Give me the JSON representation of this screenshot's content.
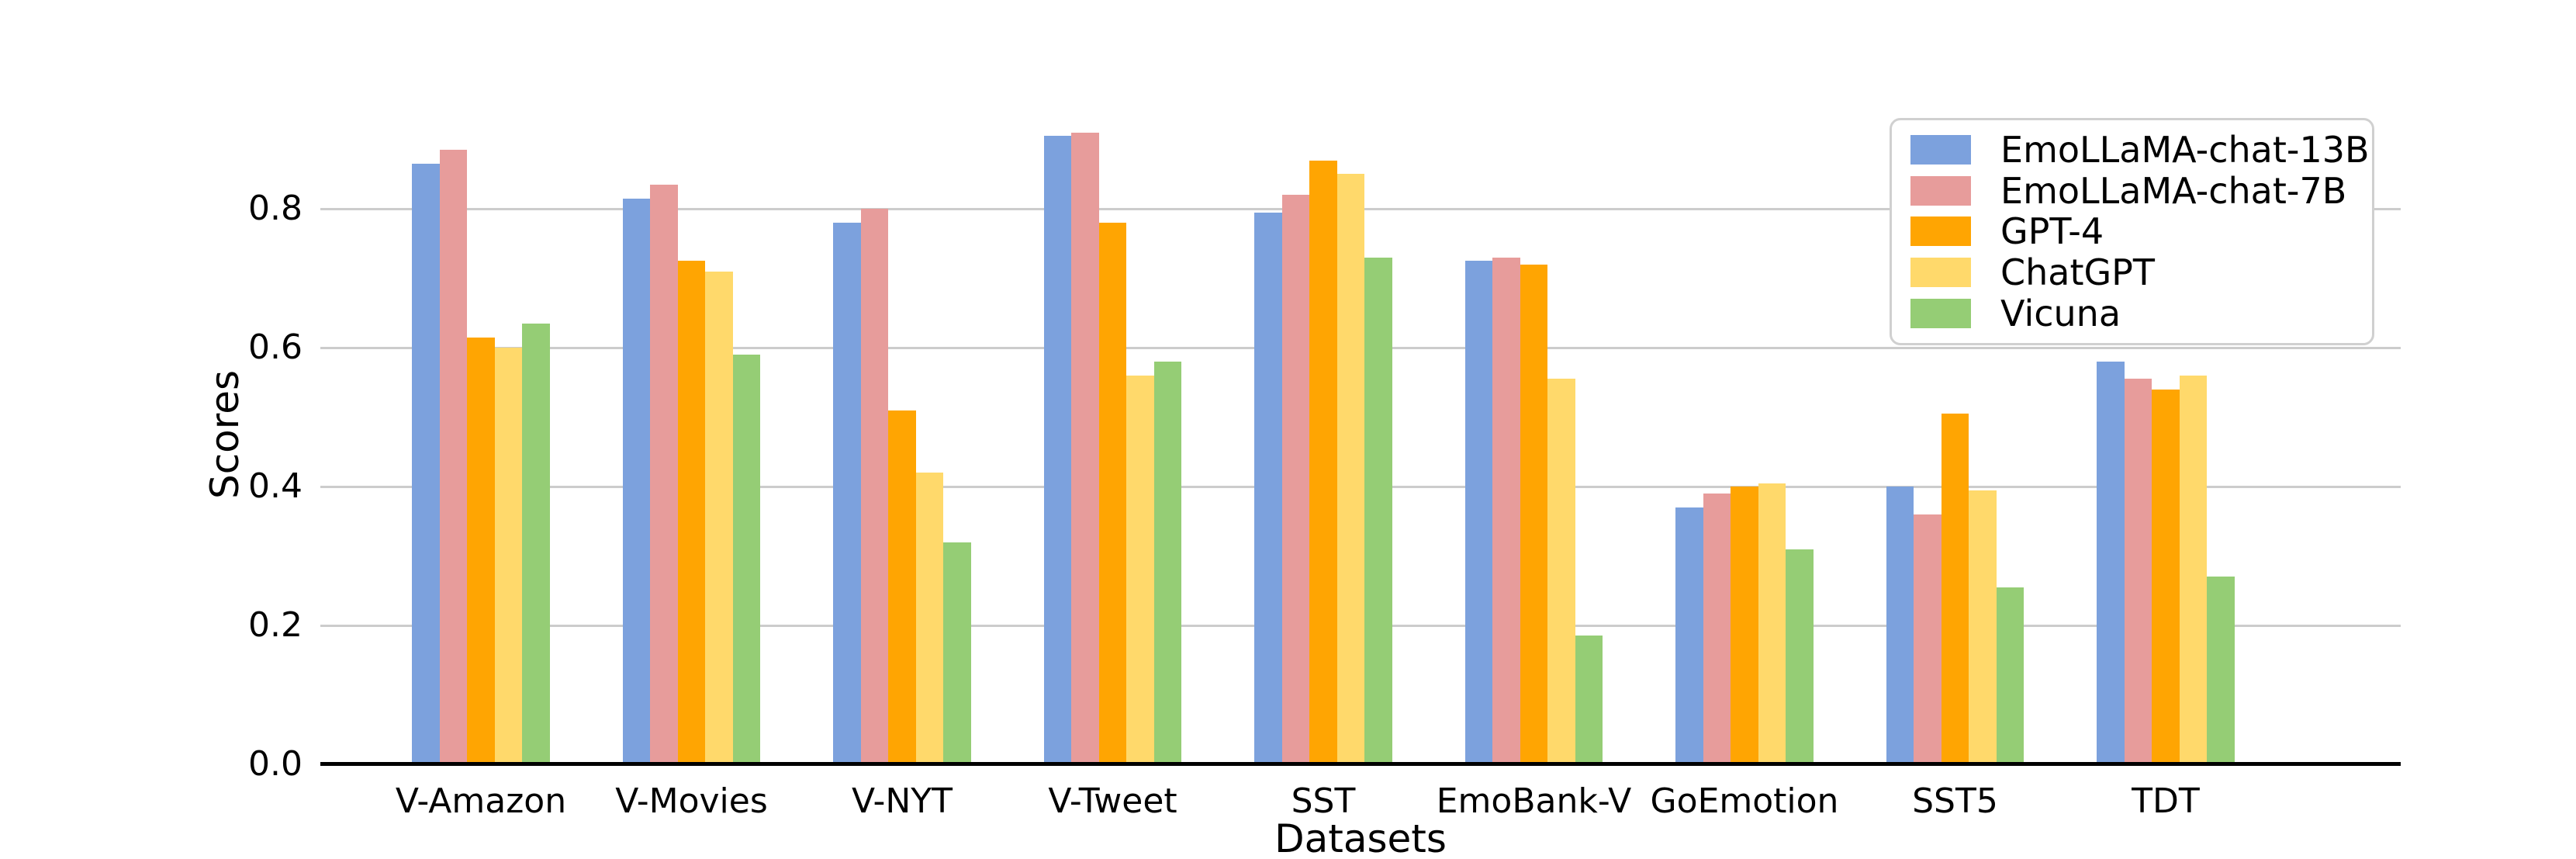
{
  "figure": {
    "ylabel": "Scores",
    "xlabel": "Datasets"
  },
  "colors": {
    "gridline": "#cccccc",
    "axis_line": "#000000",
    "legend_border": "#d0d0d0",
    "background": "#ffffff"
  },
  "chart_data": {
    "type": "bar",
    "title": "",
    "xlabel": "Datasets",
    "ylabel": "Scores",
    "ylim": [
      0,
      0.95
    ],
    "yticks": [
      {
        "value": 0.0,
        "label": "0.0"
      },
      {
        "value": 0.2,
        "label": "0.2"
      },
      {
        "value": 0.4,
        "label": "0.4"
      },
      {
        "value": 0.6,
        "label": "0.6"
      },
      {
        "value": 0.8,
        "label": "0.8"
      }
    ],
    "grid": true,
    "legend_position": "upper right",
    "categories": [
      "V-Amazon",
      "V-Movies",
      "V-NYT",
      "V-Tweet",
      "SST",
      "EmoBank-V",
      "GoEmotion",
      "SST5",
      "TDT"
    ],
    "series": [
      {
        "name": "EmoLLaMA-chat-13B",
        "color": "#7ca1dd",
        "values": [
          0.865,
          0.815,
          0.78,
          0.905,
          0.795,
          0.725,
          0.37,
          0.4,
          0.58
        ]
      },
      {
        "name": "EmoLLaMA-chat-7B",
        "color": "#e79c9b",
        "values": [
          0.885,
          0.835,
          0.8,
          0.91,
          0.82,
          0.73,
          0.39,
          0.36,
          0.555
        ]
      },
      {
        "name": "GPT-4",
        "color": "#ffa502",
        "values": [
          0.615,
          0.725,
          0.51,
          0.78,
          0.87,
          0.72,
          0.4,
          0.505,
          0.54
        ]
      },
      {
        "name": "ChatGPT",
        "color": "#ffd96b",
        "values": [
          0.6,
          0.71,
          0.42,
          0.56,
          0.85,
          0.555,
          0.405,
          0.395,
          0.56
        ]
      },
      {
        "name": "Vicuna",
        "color": "#95cd75",
        "values": [
          0.635,
          0.59,
          0.32,
          0.58,
          0.73,
          0.185,
          0.31,
          0.255,
          0.27
        ]
      }
    ]
  }
}
